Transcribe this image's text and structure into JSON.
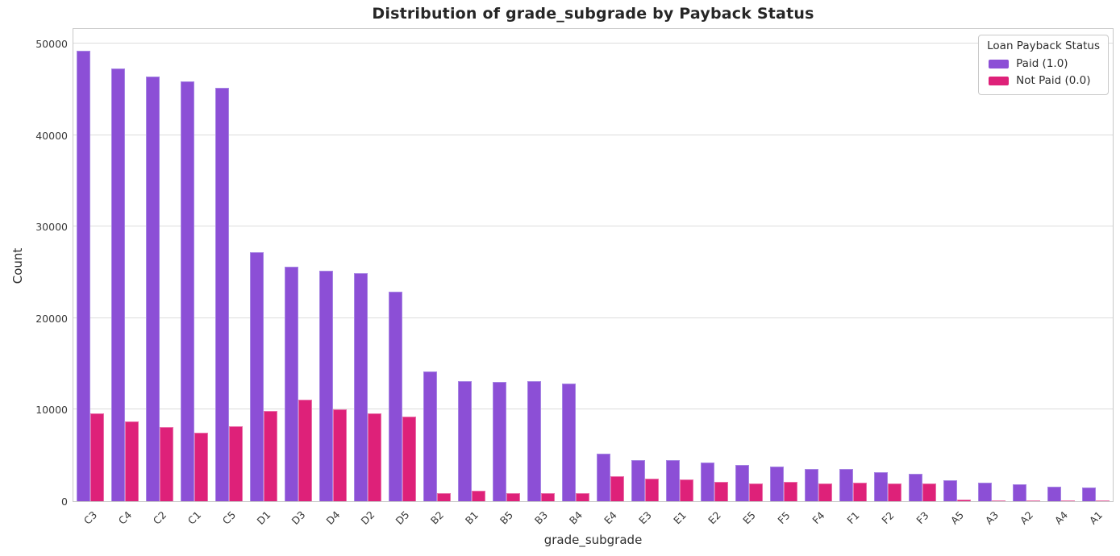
{
  "chart_data": {
    "type": "bar",
    "title": "Distribution of grade_subgrade by Payback Status",
    "xlabel": "grade_subgrade",
    "ylabel": "Count",
    "legend_title": "Loan Payback Status",
    "legend_position": "upper right",
    "grid": "horizontal",
    "ylim": [
      0,
      51800
    ],
    "y_ticks": [
      0,
      10000,
      20000,
      30000,
      40000,
      50000
    ],
    "categories": [
      "C3",
      "C4",
      "C2",
      "C1",
      "C5",
      "D1",
      "D3",
      "D4",
      "D2",
      "D5",
      "B2",
      "B1",
      "B5",
      "B3",
      "B4",
      "E4",
      "E3",
      "E1",
      "E2",
      "E5",
      "F5",
      "F4",
      "F1",
      "F2",
      "F3",
      "A5",
      "A3",
      "A2",
      "A4",
      "A1"
    ],
    "series": [
      {
        "key": "paid",
        "name": "Paid (1.0)",
        "color": "#8C4FD6",
        "edge_color": "#A685E3",
        "values": [
          49200,
          47300,
          46400,
          45900,
          45200,
          27200,
          25600,
          25200,
          24900,
          22900,
          14200,
          13100,
          13000,
          13100,
          12900,
          5200,
          4500,
          4500,
          4200,
          4000,
          3800,
          3500,
          3500,
          3200,
          3000,
          2300,
          2000,
          1850,
          1600,
          1500
        ]
      },
      {
        "key": "not-paid",
        "name": "Not Paid (0.0)",
        "color": "#DE2179",
        "edge_color": "#EA6FA9",
        "values": [
          9600,
          8700,
          8100,
          7450,
          8150,
          9900,
          11100,
          10000,
          9600,
          9250,
          900,
          1150,
          900,
          850,
          900,
          2700,
          2500,
          2400,
          2100,
          1900,
          2100,
          1900,
          2000,
          1950,
          1900,
          150,
          60,
          50,
          40,
          30
        ]
      }
    ],
    "colors": {
      "grid": "#DCDCDC",
      "spine": "#C8C8C8",
      "tick_text": "#3A3A3A",
      "title_text": "#262626"
    }
  }
}
